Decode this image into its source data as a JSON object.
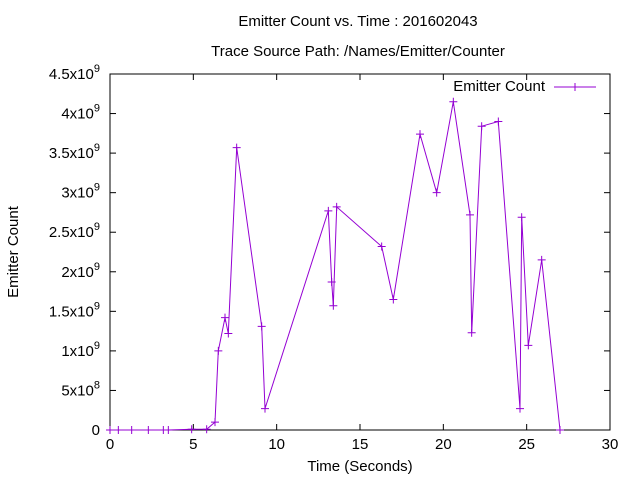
{
  "chart_data": {
    "type": "line",
    "title": "Emitter Count vs. Time : 201602043",
    "subtitle": "Trace Source Path: /Names/Emitter/Counter",
    "xlabel": "Time (Seconds)",
    "ylabel": "Emitter Count",
    "xlim": [
      0,
      30
    ],
    "ylim": [
      0,
      4500000000
    ],
    "x_ticks": [
      0,
      5,
      10,
      15,
      20,
      25,
      30
    ],
    "y_ticks": [
      {
        "value": 0,
        "base": "0",
        "exp": ""
      },
      {
        "value": 500000000,
        "base": "5x10",
        "exp": "8"
      },
      {
        "value": 1000000000,
        "base": "1x10",
        "exp": "9"
      },
      {
        "value": 1500000000,
        "base": "1.5x10",
        "exp": "9"
      },
      {
        "value": 2000000000,
        "base": "2x10",
        "exp": "9"
      },
      {
        "value": 2500000000,
        "base": "2.5x10",
        "exp": "9"
      },
      {
        "value": 3000000000,
        "base": "3x10",
        "exp": "9"
      },
      {
        "value": 3500000000,
        "base": "3.5x10",
        "exp": "9"
      },
      {
        "value": 4000000000,
        "base": "4x10",
        "exp": "9"
      },
      {
        "value": 4500000000,
        "base": "4.5x10",
        "exp": "9"
      }
    ],
    "grid": false,
    "legend_position": "top-right",
    "series": [
      {
        "name": "Emitter Count",
        "color": "#9400d3",
        "points": [
          [
            0.0,
            0
          ],
          [
            0.5,
            0
          ],
          [
            1.3,
            0
          ],
          [
            2.3,
            0
          ],
          [
            3.2,
            0
          ],
          [
            3.5,
            0
          ],
          [
            4.9,
            10000000
          ],
          [
            5.8,
            10000000
          ],
          [
            6.3,
            100000000
          ],
          [
            6.5,
            1000000000
          ],
          [
            6.9,
            1420000000
          ],
          [
            7.1,
            1220000000
          ],
          [
            7.6,
            3570000000
          ],
          [
            9.1,
            1310000000
          ],
          [
            9.3,
            270000000
          ],
          [
            13.1,
            2770000000
          ],
          [
            13.3,
            1870000000
          ],
          [
            13.4,
            1570000000
          ],
          [
            13.6,
            2820000000
          ],
          [
            16.3,
            2320000000
          ],
          [
            17.0,
            1650000000
          ],
          [
            18.6,
            3740000000
          ],
          [
            19.6,
            3000000000
          ],
          [
            20.6,
            4150000000
          ],
          [
            21.6,
            2720000000
          ],
          [
            21.7,
            1230000000
          ],
          [
            22.3,
            3840000000
          ],
          [
            23.3,
            3900000000
          ],
          [
            24.6,
            270000000
          ],
          [
            24.7,
            2690000000
          ],
          [
            25.1,
            1070000000
          ],
          [
            25.9,
            2150000000
          ],
          [
            27.0,
            0
          ]
        ]
      }
    ]
  }
}
